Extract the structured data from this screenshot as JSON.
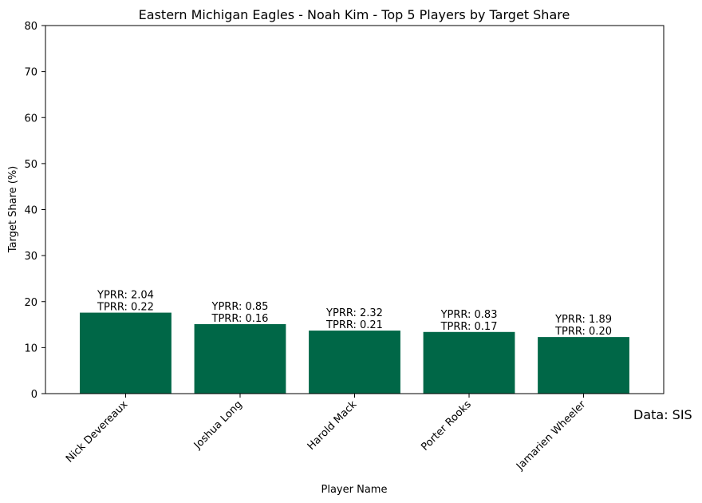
{
  "chart_data": {
    "type": "bar",
    "title": "Eastern Michigan Eagles - Noah Kim - Top 5 Players by Target Share",
    "xlabel": "Player Name",
    "ylabel": "Target Share (%)",
    "ylim": [
      0,
      80
    ],
    "yticks": [
      "0",
      "10",
      "20",
      "30",
      "40",
      "50",
      "60",
      "70",
      "80"
    ],
    "categories": [
      "Nick Devereaux",
      "Joshua Long",
      "Harold Mack",
      "Porter Rooks",
      "Jamarien Wheeler"
    ],
    "values": [
      17.6,
      15.1,
      13.7,
      13.4,
      12.3
    ],
    "data_labels": [
      [
        "YPRR: 2.04",
        "TPRR: 0.22"
      ],
      [
        "YPRR: 0.85",
        "TPRR: 0.16"
      ],
      [
        "YPRR: 2.32",
        "TPRR: 0.21"
      ],
      [
        "YPRR: 0.83",
        "TPRR: 0.17"
      ],
      [
        "YPRR: 1.89",
        "TPRR: 0.20"
      ]
    ],
    "bar_color": "#006747",
    "grid": false,
    "legend": "none"
  },
  "source_note": "Data: SIS"
}
